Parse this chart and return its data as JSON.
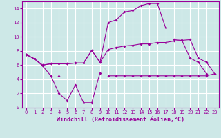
{
  "x": [
    0,
    1,
    2,
    3,
    4,
    5,
    6,
    7,
    8,
    9,
    10,
    11,
    12,
    13,
    14,
    15,
    16,
    17,
    18,
    19,
    20,
    21,
    22,
    23
  ],
  "line1": [
    7.5,
    6.9,
    5.9,
    4.5,
    2.0,
    1.0,
    3.2,
    0.7,
    0.7,
    4.9,
    null,
    null,
    null,
    null,
    null,
    null,
    null,
    null,
    null,
    null,
    null,
    null,
    null,
    null
  ],
  "line2": [
    7.5,
    null,
    5.9,
    null,
    4.5,
    null,
    null,
    null,
    null,
    null,
    4.5,
    4.5,
    4.5,
    4.5,
    4.5,
    4.5,
    4.5,
    4.5,
    4.5,
    4.5,
    4.5,
    4.5,
    4.5,
    4.8
  ],
  "line3": [
    7.5,
    6.9,
    6.0,
    6.2,
    6.2,
    6.2,
    6.3,
    6.3,
    8.1,
    6.4,
    8.2,
    8.5,
    8.7,
    8.8,
    9.0,
    9.0,
    9.2,
    9.2,
    9.4,
    9.5,
    9.6,
    7.0,
    6.4,
    4.8
  ],
  "line4": [
    7.5,
    6.9,
    6.0,
    6.2,
    6.2,
    6.2,
    6.3,
    6.3,
    8.1,
    6.4,
    12.0,
    12.4,
    13.5,
    13.7,
    14.4,
    14.7,
    14.7,
    11.3,
    null,
    null,
    null,
    null,
    null,
    null
  ],
  "line5": [
    null,
    null,
    null,
    null,
    null,
    null,
    null,
    null,
    null,
    null,
    null,
    null,
    null,
    null,
    null,
    null,
    null,
    null,
    9.6,
    9.5,
    7.0,
    6.4,
    4.8,
    null
  ],
  "background_color": "#cde8e7",
  "grid_color": "#ffffff",
  "line_color": "#990099",
  "xlabel": "Windchill (Refroidissement éolien,°C)",
  "ylim": [
    0,
    15
  ],
  "xlim": [
    -0.5,
    23.5
  ],
  "yticks": [
    0,
    2,
    4,
    6,
    8,
    10,
    12,
    14
  ],
  "xticks": [
    0,
    1,
    2,
    3,
    4,
    5,
    6,
    7,
    8,
    9,
    10,
    11,
    12,
    13,
    14,
    15,
    16,
    17,
    18,
    19,
    20,
    21,
    22,
    23
  ],
  "tick_fontsize": 5,
  "xlabel_fontsize": 6
}
